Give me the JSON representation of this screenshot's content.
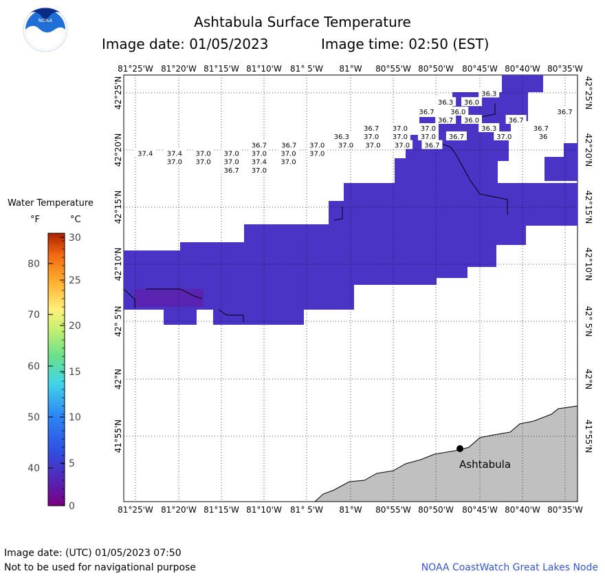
{
  "header": {
    "title": "Ashtabula Surface Temperature",
    "image_date": "Image date: 01/05/2023",
    "image_time": "Image time: 02:50 (EST)",
    "logo_text": "NOAA"
  },
  "legend": {
    "title": "Water Temperature",
    "unit_f": "°F",
    "unit_c": "°C",
    "f_ticks": [
      "80",
      "70",
      "60",
      "50",
      "40"
    ],
    "c_ticks": [
      "30",
      "25",
      "20",
      "15",
      "10",
      "5",
      "0"
    ]
  },
  "axes": {
    "lon_labels": [
      "81°25'W",
      "81°20'W",
      "81°15'W",
      "81°10'W",
      "81° 5'W",
      "81°W",
      "80°55'W",
      "80°50'W",
      "80°45'W",
      "80°40'W",
      "80°35'W"
    ],
    "lat_labels": [
      "42°25'N",
      "42°20'N",
      "42°15'N",
      "42°10'N",
      "42° 5'N",
      "42°N",
      "41°55'N"
    ]
  },
  "map": {
    "city": "Ashtabula",
    "readings": [
      {
        "v": "36.3",
        "lon": -80.743,
        "lat": 42.389
      },
      {
        "v": "36.3",
        "lon": -80.823,
        "lat": 42.368
      },
      {
        "v": "36.0",
        "lon": -80.775,
        "lat": 42.368
      },
      {
        "v": "36.7",
        "lon": -80.858,
        "lat": 42.345
      },
      {
        "v": "36.0",
        "lon": -80.8,
        "lat": 42.345
      },
      {
        "v": "36.7",
        "lon": -80.603,
        "lat": 42.345
      },
      {
        "v": "36.7",
        "lon": -80.823,
        "lat": 42.325
      },
      {
        "v": "36.0",
        "lon": -80.775,
        "lat": 42.325
      },
      {
        "v": "36.7",
        "lon": -80.693,
        "lat": 42.325
      },
      {
        "v": "36.7",
        "lon": -80.96,
        "lat": 42.305
      },
      {
        "v": "37.0",
        "lon": -80.907,
        "lat": 42.305
      },
      {
        "v": "37.0",
        "lon": -80.855,
        "lat": 42.305
      },
      {
        "v": "36.3",
        "lon": -80.743,
        "lat": 42.305
      },
      {
        "v": "36.7",
        "lon": -80.647,
        "lat": 42.305
      },
      {
        "v": "36.3",
        "lon": -81.015,
        "lat": 42.285
      },
      {
        "v": "37.0",
        "lon": -80.96,
        "lat": 42.285
      },
      {
        "v": "37.0",
        "lon": -80.907,
        "lat": 42.285
      },
      {
        "v": "37.0",
        "lon": -80.855,
        "lat": 42.285
      },
      {
        "v": "36.7",
        "lon": -80.803,
        "lat": 42.285
      },
      {
        "v": "37.0",
        "lon": -80.715,
        "lat": 42.285
      },
      {
        "v": "36",
        "lon": -80.643,
        "lat": 42.285
      },
      {
        "v": "36.7",
        "lon": -81.167,
        "lat": 42.264
      },
      {
        "v": "36.7",
        "lon": -81.112,
        "lat": 42.264
      },
      {
        "v": "37.0",
        "lon": -81.06,
        "lat": 42.264
      },
      {
        "v": "37.0",
        "lon": -81.007,
        "lat": 42.264
      },
      {
        "v": "37.0",
        "lon": -80.957,
        "lat": 42.264
      },
      {
        "v": "37.0",
        "lon": -80.903,
        "lat": 42.264
      },
      {
        "v": "36.7",
        "lon": -80.848,
        "lat": 42.264
      },
      {
        "v": "37.4",
        "lon": -81.377,
        "lat": 42.244
      },
      {
        "v": "37.4",
        "lon": -81.323,
        "lat": 42.244
      },
      {
        "v": "37.0",
        "lon": -81.27,
        "lat": 42.244
      },
      {
        "v": "37.0",
        "lon": -81.218,
        "lat": 42.244
      },
      {
        "v": "37.0",
        "lon": -81.167,
        "lat": 42.244
      },
      {
        "v": "37.0",
        "lon": -81.113,
        "lat": 42.244
      },
      {
        "v": "37.0",
        "lon": -81.06,
        "lat": 42.244
      },
      {
        "v": "37.0",
        "lon": -81.323,
        "lat": 42.224
      },
      {
        "v": "37.0",
        "lon": -81.27,
        "lat": 42.224
      },
      {
        "v": "37.0",
        "lon": -81.218,
        "lat": 42.224
      },
      {
        "v": "37.4",
        "lon": -81.167,
        "lat": 42.224
      },
      {
        "v": "37.0",
        "lon": -81.113,
        "lat": 42.224
      },
      {
        "v": "36.7",
        "lon": -81.218,
        "lat": 42.203
      },
      {
        "v": "37.0",
        "lon": -81.167,
        "lat": 42.203
      }
    ]
  },
  "footer": {
    "utc_date": "Image date: (UTC) 01/05/2023  07:50",
    "disclaimer": "Not to be used for navigational purpose",
    "credit": "NOAA CoastWatch Great Lakes Node"
  }
}
